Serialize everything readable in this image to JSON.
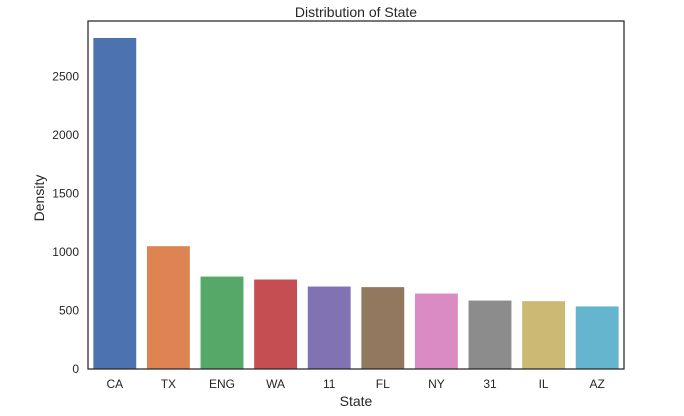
{
  "chart_data": {
    "type": "bar",
    "title": "Distribution of State",
    "xlabel": "State",
    "ylabel": "Density",
    "categories": [
      "CA",
      "TX",
      "ENG",
      "WA",
      "11",
      "FL",
      "NY",
      "31",
      "IL",
      "AZ"
    ],
    "values": [
      2830,
      1050,
      790,
      765,
      705,
      700,
      645,
      585,
      580,
      535
    ],
    "ylim": [
      0,
      2975
    ],
    "yticks": [
      0,
      500,
      1000,
      1500,
      2000,
      2500
    ],
    "grid": false,
    "legend": "none",
    "colors": [
      "#4c72b0",
      "#dd8452",
      "#55a868",
      "#c44e52",
      "#8172b3",
      "#937860",
      "#da8bc3",
      "#8c8c8c",
      "#ccb974",
      "#64b5cd"
    ]
  }
}
